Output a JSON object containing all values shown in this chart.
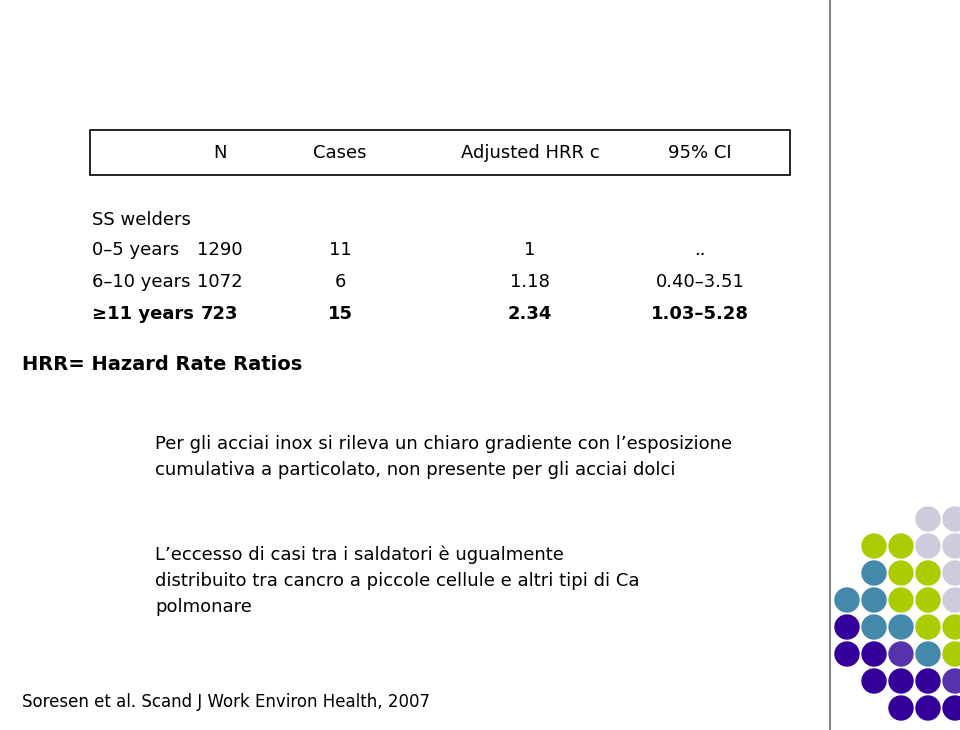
{
  "table_header_labels": [
    "N",
    "Cases",
    "Adjusted HRR c",
    "95% CI"
  ],
  "table_rows": [
    [
      "SS welders",
      "",
      "",
      "",
      ""
    ],
    [
      "0–5 years",
      "1290",
      "11",
      "1",
      ".."
    ],
    [
      "6–10 years",
      "1072",
      "6",
      "1.18",
      "0.40–3.51"
    ],
    [
      "≥11 years",
      "723",
      "15",
      "2.34",
      "1.03–5.28"
    ]
  ],
  "bold_rows": [
    3
  ],
  "footnote": "HRR= Hazard Rate Ratios",
  "paragraph1": "Per gli acciai inox si rileva un chiaro gradiente con l’esposizione\ncumulativa a particolato, non presente per gli acciai dolci",
  "paragraph2": "L’eccesso di casi tra i saldatori è ugualmente\ndistribuito tra cancro a piccole cellule e altri tipi di Ca\npolmonare",
  "footer": "Soresen et al. Scand J Work Environ Health, 2007",
  "dot_colors": [
    "#330099",
    "#5533aa",
    "#4488aa",
    "#aacc00",
    "#ccccdd"
  ],
  "dot_grid": [
    [
      0,
      0,
      0
    ],
    [
      0,
      0,
      0,
      1
    ],
    [
      0,
      0,
      1,
      2,
      3
    ],
    [
      0,
      2,
      2,
      3,
      3
    ],
    [
      2,
      2,
      3,
      3,
      4
    ],
    [
      2,
      3,
      3,
      4
    ],
    [
      3,
      3,
      4,
      4
    ],
    [
      4,
      4
    ]
  ],
  "bg_color": "#ffffff",
  "text_color": "#000000",
  "table_font_size": 13,
  "body_font_size": 13,
  "footer_font_size": 12
}
